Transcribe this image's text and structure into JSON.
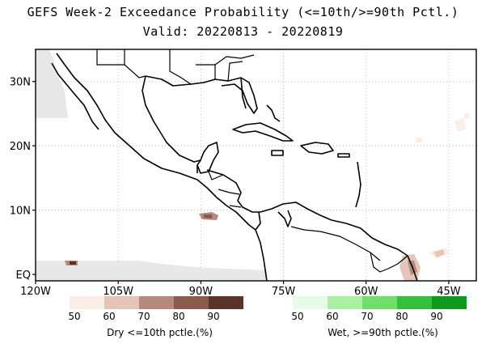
{
  "title_line1": "GEFS Week-2 Exceedance Probability (<=10th/>=90th Pctl.)",
  "title_line2": "Valid: 20220813 - 20220819",
  "axes": {
    "lon_labels": [
      "120W",
      "105W",
      "90W",
      "75W",
      "60W",
      "45W"
    ],
    "lat_labels": [
      "30N",
      "20N",
      "10N",
      "EQ"
    ],
    "lon_range": [
      -120,
      -40
    ],
    "lat_range": [
      -1,
      35
    ]
  },
  "legend_dry": {
    "caption": "Dry <=10th pctle.(%)",
    "ticks": [
      "50",
      "60",
      "70",
      "80",
      "90"
    ],
    "colors": [
      "#fbeee6",
      "#e6c4b8",
      "#b58a7d",
      "#8a5a4b",
      "#5c3328"
    ]
  },
  "legend_wet": {
    "caption": "Wet, >=90th pctle.(%)",
    "ticks": [
      "50",
      "60",
      "70",
      "80",
      "90"
    ],
    "colors": [
      "#e6fce6",
      "#a9f0a0",
      "#6ee06a",
      "#33c03a",
      "#0f9a1c"
    ]
  }
}
